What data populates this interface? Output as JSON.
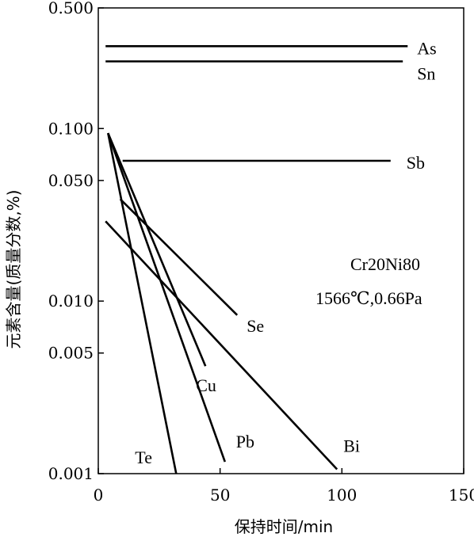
{
  "chart_data": {
    "type": "line",
    "xlabel": "保持时间/min",
    "ylabel": "元素含量(质量分数,%)",
    "xlim": [
      0,
      150
    ],
    "ylim": [
      0.001,
      0.5
    ],
    "yscale": "log",
    "xticks": [
      {
        "value": 0,
        "label": "0"
      },
      {
        "value": 50,
        "label": "50"
      },
      {
        "value": 100,
        "label": "100"
      },
      {
        "value": 150,
        "label": "150"
      }
    ],
    "yticks": [
      {
        "value": 0.001,
        "label": "0.001"
      },
      {
        "value": 0.005,
        "label": "0.005"
      },
      {
        "value": 0.01,
        "label": "0.010"
      },
      {
        "value": 0.05,
        "label": "0.050"
      },
      {
        "value": 0.1,
        "label": "0.100"
      },
      {
        "value": 0.5,
        "label": "0.500"
      }
    ],
    "annotations": [
      "Cr20Ni80",
      "1566℃,0.66Pa"
    ],
    "series": [
      {
        "name": "As",
        "x": [
          3,
          127
        ],
        "y": [
          0.3,
          0.3
        ]
      },
      {
        "name": "Sn",
        "x": [
          3,
          125
        ],
        "y": [
          0.245,
          0.245
        ]
      },
      {
        "name": "Sb",
        "x": [
          10,
          120
        ],
        "y": [
          0.065,
          0.065
        ]
      },
      {
        "name": "Se",
        "x": [
          9,
          57
        ],
        "y": [
          0.039,
          0.0083
        ]
      },
      {
        "name": "Cu",
        "x": [
          4,
          44
        ],
        "y": [
          0.094,
          0.0042
        ]
      },
      {
        "name": "Te",
        "x": [
          4,
          32
        ],
        "y": [
          0.094,
          0.001
        ]
      },
      {
        "name": "Pb",
        "x": [
          4,
          52
        ],
        "y": [
          0.094,
          0.00117
        ]
      },
      {
        "name": "Bi",
        "x": [
          3,
          98
        ],
        "y": [
          0.029,
          0.00106
        ]
      }
    ]
  }
}
